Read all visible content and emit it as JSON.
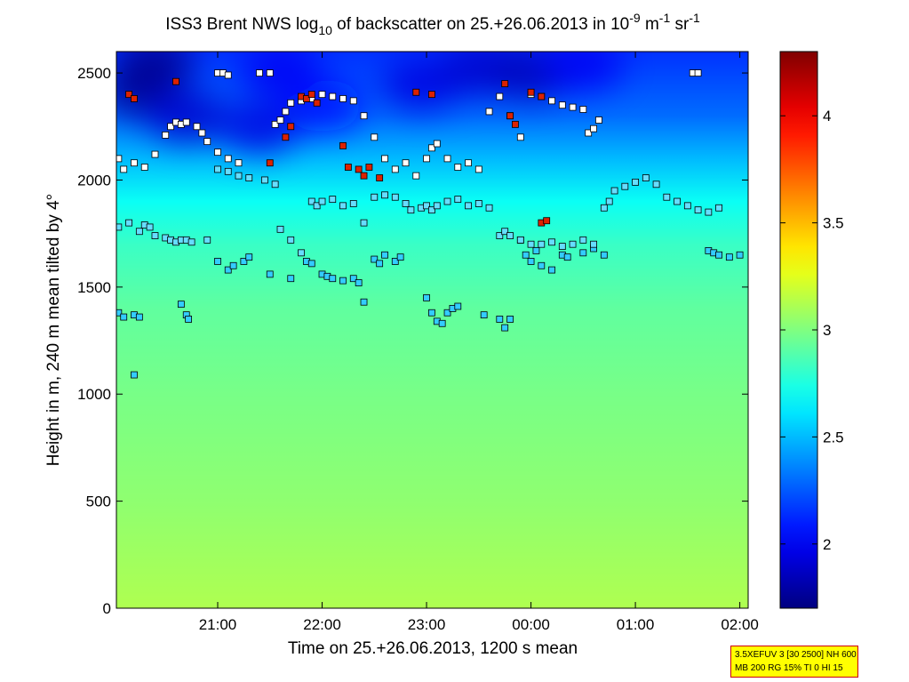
{
  "chart_data": {
    "type": "heatmap",
    "title": {
      "part1": "ISS3 Brent NWS log",
      "sub10": "10",
      "part2": " of backscatter on 25.+26.06.2013 in 10",
      "sup1": "-9",
      "part3": " m",
      "sup2": "-1",
      "part4": " sr",
      "sup3": "-1"
    },
    "xlabel": "Time on 25.+26.06.2013, 1200 s mean",
    "ylabel": "Height in m, 240 m mean tilted by 4°",
    "x_ticks": [
      "21:00",
      "22:00",
      "23:00",
      "00:00",
      "01:00",
      "02:00"
    ],
    "x_tick_hours": [
      21,
      22,
      23,
      24,
      25,
      26
    ],
    "xlim_hours": [
      20.03,
      26.08
    ],
    "y_ticks": [
      0,
      500,
      1000,
      1500,
      2000,
      2500
    ],
    "ylim": [
      0,
      2600
    ],
    "colorbar": {
      "ticks": [
        "2",
        "2.5",
        "3",
        "3.5",
        "4"
      ],
      "tick_values": [
        2,
        2.5,
        3,
        3.5,
        4
      ],
      "range": [
        1.7,
        4.3
      ],
      "colormap": "jet"
    },
    "background_levels": [
      {
        "y": 0,
        "v": 3.12
      },
      {
        "y": 500,
        "v": 3.04
      },
      {
        "y": 1000,
        "v": 2.98
      },
      {
        "y": 1400,
        "v": 2.92
      },
      {
        "y": 1700,
        "v": 2.82
      },
      {
        "y": 1900,
        "v": 2.7
      },
      {
        "y": 2100,
        "v": 2.5
      },
      {
        "y": 2300,
        "v": 2.3
      },
      {
        "y": 2500,
        "v": 2.2
      },
      {
        "y": 2600,
        "v": 2.15
      }
    ],
    "dark_patches": [
      {
        "x": 20.25,
        "y": 2420,
        "v": 1.75
      },
      {
        "x": 20.7,
        "y": 2300,
        "v": 1.9
      },
      {
        "x": 21.4,
        "y": 2250,
        "v": 1.95
      },
      {
        "x": 22.0,
        "y": 2350,
        "v": 2.05
      },
      {
        "x": 22.95,
        "y": 2450,
        "v": 1.95
      },
      {
        "x": 23.5,
        "y": 2520,
        "v": 1.9
      },
      {
        "x": 24.0,
        "y": 2500,
        "v": 1.85
      },
      {
        "x": 24.5,
        "y": 2540,
        "v": 2.0
      },
      {
        "x": 20.4,
        "y": 2550,
        "v": 1.75
      },
      {
        "x": 21.6,
        "y": 2520,
        "v": 2.0
      }
    ],
    "layer_markers": [
      {
        "series": "low",
        "points": [
          [
            20.05,
            1380
          ],
          [
            20.1,
            1360
          ],
          [
            20.2,
            1370
          ],
          [
            20.25,
            1360
          ],
          [
            20.2,
            1090
          ],
          [
            20.65,
            1420
          ],
          [
            20.7,
            1370
          ],
          [
            20.72,
            1350
          ],
          [
            21.0,
            1620
          ],
          [
            21.1,
            1580
          ],
          [
            21.15,
            1600
          ],
          [
            21.25,
            1620
          ],
          [
            21.3,
            1640
          ],
          [
            21.5,
            1560
          ],
          [
            21.7,
            1540
          ],
          [
            21.85,
            1620
          ],
          [
            21.9,
            1610
          ],
          [
            22.0,
            1560
          ],
          [
            22.05,
            1550
          ],
          [
            22.1,
            1540
          ],
          [
            22.2,
            1530
          ],
          [
            22.3,
            1540
          ],
          [
            22.35,
            1520
          ],
          [
            22.4,
            1430
          ],
          [
            22.5,
            1630
          ],
          [
            22.55,
            1610
          ],
          [
            22.6,
            1650
          ],
          [
            22.7,
            1620
          ],
          [
            22.75,
            1640
          ],
          [
            23.0,
            1450
          ],
          [
            23.05,
            1380
          ],
          [
            23.1,
            1340
          ],
          [
            23.15,
            1330
          ],
          [
            23.2,
            1380
          ],
          [
            23.25,
            1400
          ],
          [
            23.3,
            1410
          ],
          [
            23.55,
            1370
          ],
          [
            23.7,
            1350
          ],
          [
            23.75,
            1310
          ],
          [
            23.8,
            1350
          ],
          [
            23.9,
            1720
          ],
          [
            23.95,
            1650
          ],
          [
            24.0,
            1620
          ],
          [
            24.05,
            1670
          ],
          [
            24.1,
            1600
          ],
          [
            24.2,
            1580
          ],
          [
            24.3,
            1650
          ],
          [
            24.35,
            1640
          ],
          [
            24.5,
            1660
          ],
          [
            24.6,
            1680
          ],
          [
            24.7,
            1650
          ],
          [
            25.7,
            1670
          ],
          [
            25.75,
            1660
          ],
          [
            25.8,
            1650
          ],
          [
            25.9,
            1640
          ],
          [
            26.0,
            1650
          ]
        ]
      },
      {
        "series": "middle",
        "points": [
          [
            20.05,
            1780
          ],
          [
            20.15,
            1800
          ],
          [
            20.25,
            1760
          ],
          [
            20.3,
            1790
          ],
          [
            20.35,
            1780
          ],
          [
            20.4,
            1740
          ],
          [
            20.5,
            1730
          ],
          [
            20.55,
            1720
          ],
          [
            20.6,
            1710
          ],
          [
            20.65,
            1720
          ],
          [
            20.7,
            1720
          ],
          [
            20.75,
            1710
          ],
          [
            20.9,
            1720
          ],
          [
            21.0,
            2050
          ],
          [
            21.1,
            2040
          ],
          [
            21.2,
            2020
          ],
          [
            21.3,
            2010
          ],
          [
            21.45,
            2000
          ],
          [
            21.55,
            1980
          ],
          [
            21.6,
            1770
          ],
          [
            21.7,
            1720
          ],
          [
            21.8,
            1660
          ],
          [
            21.9,
            1900
          ],
          [
            21.95,
            1880
          ],
          [
            22.0,
            1900
          ],
          [
            22.1,
            1910
          ],
          [
            22.2,
            1880
          ],
          [
            22.3,
            1890
          ],
          [
            22.4,
            1800
          ],
          [
            22.5,
            1920
          ],
          [
            22.6,
            1930
          ],
          [
            22.7,
            1920
          ],
          [
            22.8,
            1890
          ],
          [
            22.85,
            1860
          ],
          [
            22.95,
            1870
          ],
          [
            23.0,
            1880
          ],
          [
            23.05,
            1860
          ],
          [
            23.1,
            1880
          ],
          [
            23.2,
            1900
          ],
          [
            23.3,
            1910
          ],
          [
            23.4,
            1880
          ],
          [
            23.5,
            1890
          ],
          [
            23.6,
            1870
          ],
          [
            23.7,
            1740
          ],
          [
            23.75,
            1760
          ],
          [
            23.8,
            1740
          ],
          [
            23.9,
            1720
          ],
          [
            24.0,
            1700
          ],
          [
            24.1,
            1700
          ],
          [
            24.2,
            1710
          ],
          [
            24.3,
            1690
          ],
          [
            24.4,
            1700
          ],
          [
            24.5,
            1720
          ],
          [
            24.6,
            1700
          ],
          [
            24.7,
            1870
          ],
          [
            24.75,
            1900
          ],
          [
            24.8,
            1950
          ],
          [
            24.9,
            1970
          ],
          [
            25.0,
            1990
          ],
          [
            25.1,
            2010
          ],
          [
            25.2,
            1980
          ],
          [
            25.3,
            1920
          ],
          [
            25.4,
            1900
          ],
          [
            25.5,
            1880
          ],
          [
            25.6,
            1860
          ],
          [
            25.7,
            1850
          ],
          [
            25.8,
            1870
          ]
        ]
      },
      {
        "series": "upper",
        "points": [
          [
            20.05,
            2100
          ],
          [
            20.1,
            2050
          ],
          [
            20.2,
            2080
          ],
          [
            20.3,
            2060
          ],
          [
            20.4,
            2120
          ],
          [
            20.5,
            2210
          ],
          [
            20.55,
            2250
          ],
          [
            20.6,
            2270
          ],
          [
            20.65,
            2260
          ],
          [
            20.7,
            2270
          ],
          [
            20.8,
            2250
          ],
          [
            20.85,
            2220
          ],
          [
            20.9,
            2180
          ],
          [
            21.0,
            2130
          ],
          [
            21.1,
            2100
          ],
          [
            21.2,
            2080
          ],
          [
            21.55,
            2260
          ],
          [
            21.6,
            2280
          ],
          [
            21.65,
            2320
          ],
          [
            21.7,
            2360
          ],
          [
            21.8,
            2370
          ],
          [
            21.9,
            2380
          ],
          [
            22.0,
            2400
          ],
          [
            22.1,
            2390
          ],
          [
            22.2,
            2380
          ],
          [
            22.3,
            2370
          ],
          [
            22.4,
            2300
          ],
          [
            22.5,
            2200
          ],
          [
            22.6,
            2100
          ],
          [
            22.7,
            2050
          ],
          [
            22.8,
            2080
          ],
          [
            22.9,
            2020
          ],
          [
            23.0,
            2100
          ],
          [
            23.05,
            2150
          ],
          [
            23.1,
            2170
          ],
          [
            23.2,
            2100
          ],
          [
            23.3,
            2060
          ],
          [
            23.4,
            2080
          ],
          [
            23.5,
            2050
          ],
          [
            23.6,
            2320
          ],
          [
            23.7,
            2390
          ],
          [
            23.8,
            2300
          ],
          [
            23.9,
            2200
          ],
          [
            24.0,
            2400
          ],
          [
            24.1,
            2390
          ],
          [
            24.2,
            2370
          ],
          [
            24.3,
            2350
          ],
          [
            24.4,
            2340
          ],
          [
            24.5,
            2330
          ],
          [
            24.55,
            2220
          ],
          [
            24.6,
            2240
          ],
          [
            24.65,
            2280
          ],
          [
            25.55,
            2500
          ],
          [
            25.6,
            2500
          ],
          [
            21.0,
            2500
          ],
          [
            21.05,
            2500
          ],
          [
            21.1,
            2490
          ],
          [
            21.4,
            2500
          ],
          [
            21.5,
            2500
          ]
        ]
      },
      {
        "series": "red",
        "points": [
          [
            20.15,
            2400
          ],
          [
            20.2,
            2380
          ],
          [
            20.6,
            2460
          ],
          [
            21.5,
            2080
          ],
          [
            21.65,
            2200
          ],
          [
            21.7,
            2250
          ],
          [
            21.8,
            2390
          ],
          [
            21.85,
            2380
          ],
          [
            21.9,
            2400
          ],
          [
            21.95,
            2360
          ],
          [
            22.2,
            2160
          ],
          [
            22.25,
            2060
          ],
          [
            22.35,
            2050
          ],
          [
            22.4,
            2020
          ],
          [
            22.45,
            2060
          ],
          [
            22.55,
            2010
          ],
          [
            22.9,
            2410
          ],
          [
            23.05,
            2400
          ],
          [
            23.75,
            2450
          ],
          [
            23.8,
            2300
          ],
          [
            23.85,
            2260
          ],
          [
            24.0,
            2410
          ],
          [
            24.1,
            2390
          ],
          [
            24.1,
            1800
          ],
          [
            24.15,
            1810
          ]
        ]
      }
    ]
  },
  "info_box": {
    "line1": "3.5XEFUV 3 [30 2500] NH 600",
    "line2": "MB 200 RG 15% TI 0 HI 15"
  }
}
